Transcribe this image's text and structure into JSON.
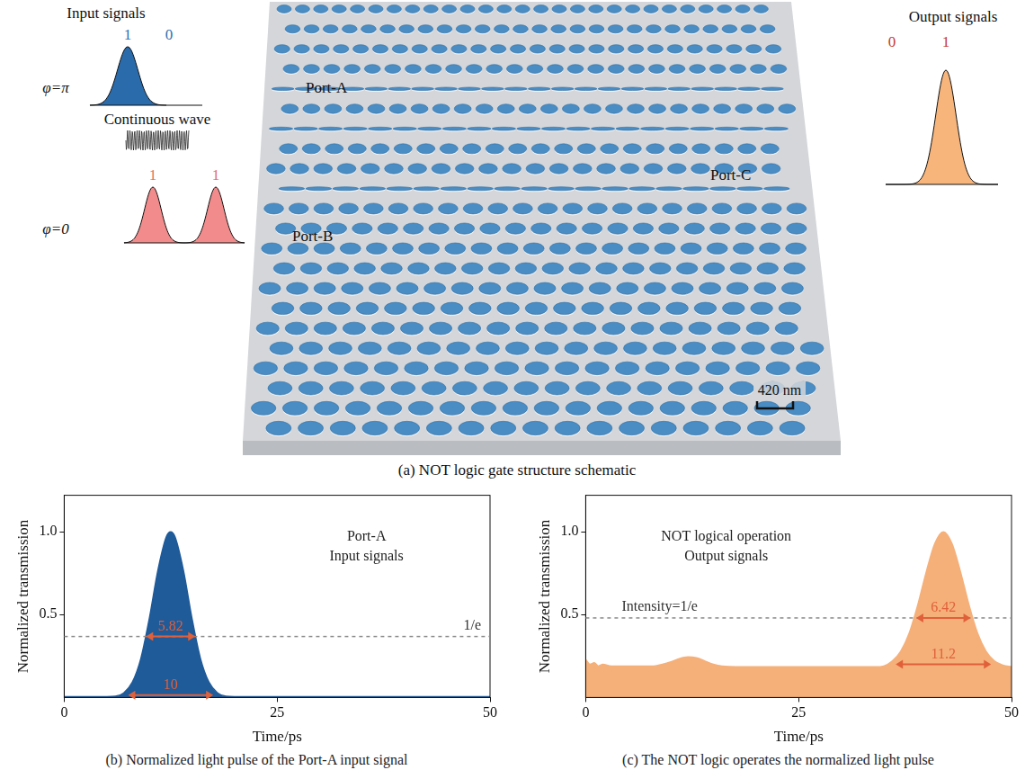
{
  "figure": {
    "panel_a": {
      "caption": "(a) NOT logic gate structure schematic",
      "input_signals": {
        "title": "Input signals",
        "bits": [
          "1",
          "0"
        ],
        "phase": "φ=π"
      },
      "continuous_wave": "Continuous wave",
      "reference_signals": {
        "phase": "φ=0",
        "bits": [
          "1",
          "1"
        ]
      },
      "ports": [
        "Port-A",
        "Port-C",
        "Port-B"
      ],
      "scale_bar": "420 nm",
      "output_signals": {
        "title": "Output signals",
        "bits": [
          "0",
          "1"
        ]
      }
    }
  },
  "chart_data": [
    {
      "type": "area",
      "caption": "(b) Normalized light pulse of the Port-A input signal",
      "x_label": "Time/ps",
      "y_label": "Normalized transmission",
      "x": [
        0,
        2,
        4,
        5,
        6,
        7,
        8,
        9,
        10,
        11,
        12,
        12.5,
        13,
        14,
        15,
        16,
        17,
        18,
        19,
        20,
        22,
        25,
        30,
        35,
        40,
        45,
        50
      ],
      "values": [
        0.005,
        0.005,
        0.005,
        0.005,
        0.007,
        0.028,
        0.092,
        0.235,
        0.478,
        0.767,
        0.971,
        1.0,
        0.971,
        0.767,
        0.478,
        0.235,
        0.092,
        0.028,
        0.007,
        0.005,
        0.005,
        0.005,
        0.005,
        0.005,
        0.005,
        0.005,
        0.005
      ],
      "color": "#1f5a99",
      "xlim": [
        0,
        50
      ],
      "ylim": [
        0,
        1.22
      ],
      "xticks": [
        0,
        25,
        50
      ],
      "yticks": [
        0.5,
        {
          "value": 1,
          "label": "1.0"
        }
      ],
      "grid": false,
      "annotations": {
        "texts": [
          "Port-A",
          "Input signals"
        ],
        "hline": {
          "y": 0.368,
          "label": "1/e"
        },
        "arrows": [
          {
            "x0": 9.6,
            "x1": 15.4,
            "y": 0.368,
            "label": "5.82"
          },
          {
            "x0": 7.5,
            "x1": 17.5,
            "y": 0.015,
            "label": "10"
          }
        ]
      }
    },
    {
      "type": "area",
      "caption": "(c) The NOT logic operates the normalized light pulse",
      "x_label": "Time/ps",
      "y_label": "Normalized transmission",
      "x": [
        0,
        0.5,
        1,
        1.5,
        2,
        3,
        4,
        6,
        8,
        9,
        10,
        11,
        12,
        13,
        14,
        15,
        16,
        20,
        25,
        30,
        34,
        35,
        36,
        37,
        38,
        39,
        40,
        41,
        42,
        43,
        44,
        45,
        46,
        47,
        48,
        49,
        50
      ],
      "values": [
        0.23,
        0.2,
        0.21,
        0.19,
        0.2,
        0.19,
        0.19,
        0.19,
        0.19,
        0.2,
        0.215,
        0.235,
        0.245,
        0.24,
        0.22,
        0.2,
        0.19,
        0.185,
        0.185,
        0.185,
        0.185,
        0.19,
        0.22,
        0.28,
        0.39,
        0.56,
        0.76,
        0.93,
        1.0,
        0.93,
        0.76,
        0.56,
        0.39,
        0.28,
        0.22,
        0.195,
        0.185
      ],
      "color": "#f5b07a",
      "xlim": [
        0,
        50
      ],
      "ylim": [
        0,
        1.22
      ],
      "xticks": [
        0,
        25,
        50
      ],
      "yticks": [
        0.5,
        {
          "value": 1,
          "label": "1.0"
        }
      ],
      "grid": false,
      "annotations": {
        "texts": [
          "NOT logical operation",
          "Output signals"
        ],
        "hline": {
          "y": 0.48,
          "label": "Intensity=1/e"
        },
        "arrows": [
          {
            "x0": 38.8,
            "x1": 45.2,
            "y": 0.48,
            "label": "6.42"
          },
          {
            "x0": 36.4,
            "x1": 47.6,
            "y": 0.2,
            "label": "11.2"
          }
        ]
      }
    }
  ]
}
